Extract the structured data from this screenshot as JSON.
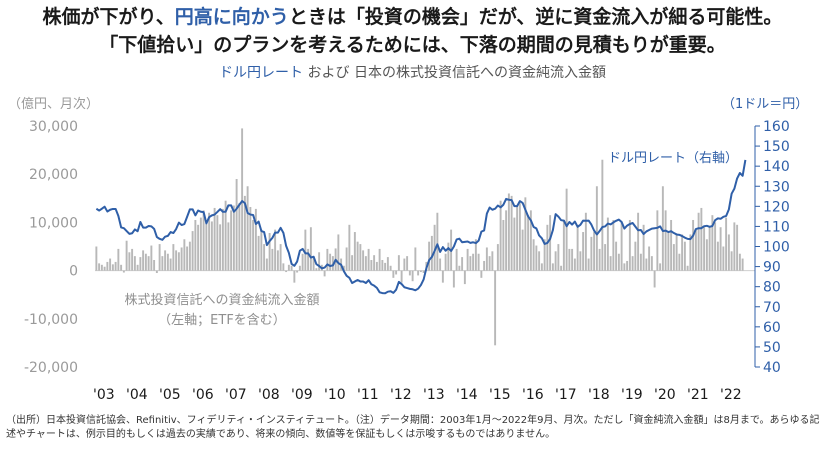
{
  "headline": {
    "line1_pre": "株価が下がり、",
    "line1_accent": "円高に向かう",
    "line1_post": "ときは「投資の機会」だが、逆に資金流入が細る可能性。",
    "line2": "「下値拾い」のプランを考えるためには、下落の期間の見積もりが重要。"
  },
  "subtitle": {
    "blue": "ドル円レート",
    "mid": " および ",
    "rest": "日本の株式投資信託への資金純流入金額"
  },
  "footnote": "（出所）日本投資信託協会、Refinitiv、フィデリティ・インスティテュート。（注）データ期間：2003年1月～2022年9月、月次。ただし「資金純流入金額」は8月まで。あらゆる記述やチャートは、例示目的もしくは過去の実績であり、将来の傾向、数値等を保証もしくは示唆するものではありません。",
  "chart_data": {
    "type": "bar+line",
    "left_axis": {
      "unit_label": "（億円、月次）",
      "ylim": [
        -20000,
        30000
      ],
      "ticks": [
        "30,000",
        "20,000",
        "10,000",
        "0",
        "-10,000",
        "-20,000"
      ]
    },
    "right_axis": {
      "unit_label": "（1ドル＝円）",
      "ylim": [
        40,
        160
      ],
      "ticks": [
        "160",
        "150",
        "140",
        "130",
        "120",
        "110",
        "100",
        "90",
        "80",
        "70",
        "60",
        "50",
        "40"
      ]
    },
    "x_ticks": [
      "'03",
      "'04",
      "'05",
      "'06",
      "'07",
      "'08",
      "'09",
      "'10",
      "'11",
      "'12",
      "'13",
      "'14",
      "'15",
      "'16",
      "'17",
      "'18",
      "'19",
      "'20",
      "'21",
      "'22"
    ],
    "x_range": [
      "2003-01",
      "2022-09"
    ],
    "bar_series": {
      "name": "株式投資信託への資金純流入金額",
      "label_line1": "株式投資信託への資金純流入金額",
      "label_line2": "（左軸；ETFを含む）",
      "color": "#b8b8b8",
      "yearly_values": [
        [
          5000,
          1500,
          1200,
          800,
          1800,
          2500,
          1300,
          1800,
          4500,
          1200,
          -400,
          6200
        ],
        [
          3800,
          4500,
          3000,
          1200,
          2800,
          4200,
          3500,
          3000,
          5200,
          2200,
          -500,
          5500
        ],
        [
          3000,
          4200,
          3500,
          2500,
          5500,
          4200,
          3800,
          4800,
          6500,
          5000,
          6000,
          8200
        ],
        [
          10500,
          9500,
          11000,
          12500,
          9800,
          12000,
          10200,
          13000,
          11500,
          9600,
          12800,
          14500
        ],
        [
          10000,
          12500,
          13500,
          19000,
          14000,
          29500,
          15500,
          17500,
          13200,
          10500,
          12800,
          7200
        ],
        [
          8500,
          5500,
          2500,
          7800,
          4500,
          8500,
          4200,
          5500,
          1500,
          -300,
          1200,
          1000
        ],
        [
          -2500,
          -400,
          1000,
          3500,
          8500,
          4500,
          9000,
          2500,
          500,
          3800,
          1200,
          -1200
        ],
        [
          4500,
          3500,
          3000,
          4600,
          7500,
          2500,
          1000,
          4800,
          9500,
          3200,
          8000,
          6000
        ],
        [
          5500,
          4200,
          3000,
          4500,
          2200,
          3200,
          1800,
          4500,
          2200,
          1600,
          2800,
          1000
        ],
        [
          -1500,
          -800,
          3200,
          -2500,
          2500,
          3000,
          -1000,
          -2200,
          4800,
          -1000,
          -300,
          -500
        ],
        [
          1800,
          6000,
          7200,
          9500,
          12000,
          2500,
          -2500,
          3500,
          5800,
          8500,
          -3500,
          4500
        ],
        [
          1000,
          2800,
          -2800,
          4500,
          3000,
          3500,
          6500,
          3500,
          -1500,
          2000,
          4800,
          3000
        ],
        [
          4000,
          -15500,
          5500,
          14500,
          10500,
          12500,
          16000,
          15500,
          11000,
          13500,
          14000,
          8500
        ],
        [
          15200,
          11500,
          12500,
          6500,
          5200,
          4000,
          1500,
          6500,
          9500,
          11500,
          1500,
          4000
        ],
        [
          5500,
          1000,
          10500,
          17000,
          4500,
          4500,
          2500,
          9500,
          4000,
          8000,
          12000,
          2500
        ],
        [
          7000,
          8000,
          17500,
          4500,
          23000,
          5500,
          11000,
          3000,
          10500,
          6000,
          3500,
          10000
        ],
        [
          1500,
          2000,
          10500,
          3000,
          6000,
          12000,
          3500,
          9500,
          2500,
          5000,
          3000,
          -3500
        ],
        [
          12500,
          1500,
          17500,
          12500,
          8000,
          10500,
          5500,
          7500,
          3500,
          7500,
          6000,
          1000
        ],
        [
          7500,
          10500,
          8500,
          12000,
          13000,
          9000,
          6500,
          9000,
          11500,
          10000,
          6000,
          9000
        ],
        [
          5000,
          11000,
          7500,
          4000,
          10000,
          9500,
          3500,
          2500
        ]
      ]
    },
    "line_series": {
      "name": "ドル円レート",
      "label": "ドル円レート（右軸）",
      "color": "#2f5fa8",
      "yearly_values": [
        [
          118.8,
          117.9,
          118.8,
          119.8,
          117.4,
          118.3,
          118.7,
          118.7,
          115.2,
          109.5,
          109.1,
          107.7
        ],
        [
          106.3,
          106.6,
          108.5,
          107.6,
          112.2,
          109.4,
          109.4,
          110.2,
          110.0,
          108.8,
          104.7,
          103.8
        ],
        [
          103.3,
          104.9,
          105.3,
          107.2,
          106.7,
          108.7,
          111.9,
          110.7,
          111.2,
          114.8,
          118.5,
          118.5
        ],
        [
          115.5,
          117.9,
          117.3,
          117.1,
          111.5,
          114.6,
          115.5,
          115.9,
          117.2,
          118.6,
          117.3,
          117.3
        ],
        [
          120.5,
          120.5,
          117.3,
          118.8,
          120.8,
          122.6,
          121.6,
          116.7,
          115.9,
          115.7,
          111.2,
          112.4
        ],
        [
          107.7,
          107.2,
          100.7,
          102.7,
          104.3,
          106.9,
          106.9,
          109.3,
          106.8,
          100.3,
          96.8,
          91.3
        ],
        [
          90.4,
          92.5,
          97.9,
          98.8,
          96.6,
          96.6,
          94.5,
          94.9,
          91.2,
          90.3,
          89.1,
          89.5
        ],
        [
          91.1,
          90.3,
          90.6,
          93.4,
          91.7,
          90.9,
          87.7,
          85.4,
          84.4,
          81.8,
          82.6,
          83.3
        ],
        [
          82.6,
          82.6,
          81.8,
          83.2,
          81.2,
          80.5,
          79.4,
          77.2,
          76.8,
          76.7,
          77.5,
          77.7
        ],
        [
          76.9,
          78.5,
          82.4,
          81.3,
          79.7,
          79.3,
          78.9,
          78.7,
          78.2,
          79.0,
          80.8,
          83.6
        ],
        [
          89.2,
          93.2,
          94.8,
          97.8,
          101.1,
          97.3,
          99.7,
          97.9,
          99.2,
          97.8,
          100.0,
          103.5
        ],
        [
          103.9,
          102.1,
          102.3,
          102.5,
          101.8,
          102.1,
          101.7,
          102.9,
          107.4,
          108.0,
          116.4,
          119.4
        ],
        [
          118.3,
          118.8,
          120.4,
          119.5,
          120.8,
          123.7,
          123.3,
          123.1,
          120.1,
          120.1,
          122.6,
          121.7
        ],
        [
          118.3,
          115.0,
          113.0,
          109.7,
          109.0,
          105.5,
          104.1,
          101.3,
          101.8,
          103.8,
          108.2,
          116.1
        ],
        [
          114.9,
          113.1,
          112.9,
          110.1,
          112.2,
          110.9,
          112.4,
          109.8,
          110.8,
          112.9,
          112.8,
          112.9
        ],
        [
          110.9,
          107.9,
          106.0,
          107.7,
          109.7,
          110.0,
          111.4,
          111.0,
          112.0,
          112.8,
          113.4,
          112.2
        ],
        [
          108.9,
          110.4,
          111.2,
          111.7,
          109.9,
          108.1,
          108.2,
          106.2,
          107.5,
          108.2,
          108.9,
          109.1
        ],
        [
          109.3,
          110.0,
          107.7,
          107.9,
          107.2,
          107.6,
          106.7,
          106.0,
          105.8,
          105.2,
          104.4,
          103.8
        ],
        [
          103.7,
          105.4,
          108.7,
          109.1,
          109.1,
          110.1,
          110.3,
          109.8,
          110.2,
          113.1,
          114.0,
          113.8
        ],
        [
          114.8,
          115.2,
          118.5,
          126.3,
          128.8,
          133.9,
          136.6,
          135.2,
          143.1
        ]
      ]
    }
  }
}
